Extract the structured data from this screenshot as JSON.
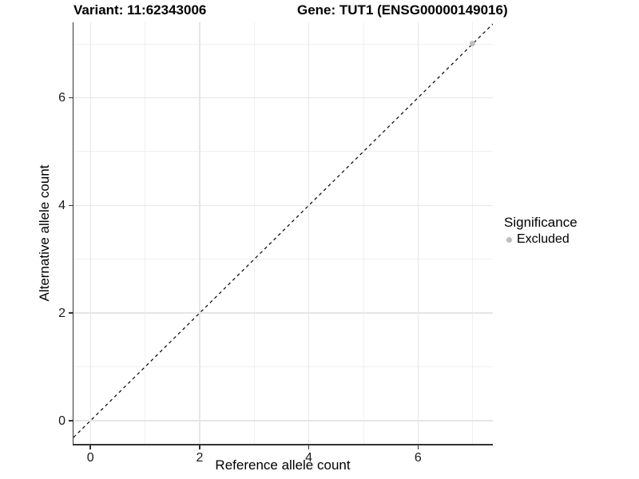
{
  "chart_data": {
    "type": "scatter",
    "title_left": "Variant: 11:62343006",
    "title_right": "Gene: TUT1 (ENSG00000149016)",
    "xlabel": "Reference allele count",
    "ylabel": "Alternative allele count",
    "x_ticks": [
      0,
      2,
      4,
      6
    ],
    "y_ticks": [
      0,
      2,
      4,
      6
    ],
    "x_minor_ticks": [
      1,
      3,
      5,
      7
    ],
    "y_minor_ticks": [
      1,
      3,
      5,
      7
    ],
    "xlim": [
      -0.31,
      7.37
    ],
    "ylim": [
      -0.43,
      7.4
    ],
    "grid": "major-and-minor",
    "reference_line": {
      "kind": "identity",
      "slope": 1,
      "intercept": 0,
      "linetype": "dashed",
      "color": "#000000"
    },
    "series": [
      {
        "name": "Excluded",
        "color": "#bdbdbd",
        "points": [
          {
            "x": 7,
            "y": 7
          }
        ]
      }
    ],
    "legend": {
      "title": "Significance",
      "position": "right",
      "entries": [
        {
          "label": "Excluded",
          "color": "#bdbdbd"
        }
      ]
    },
    "colors": {
      "major_grid": "#e6e6e6",
      "minor_grid": "#f0f0f0",
      "axis_line": "#333333",
      "background": "#ffffff"
    }
  }
}
